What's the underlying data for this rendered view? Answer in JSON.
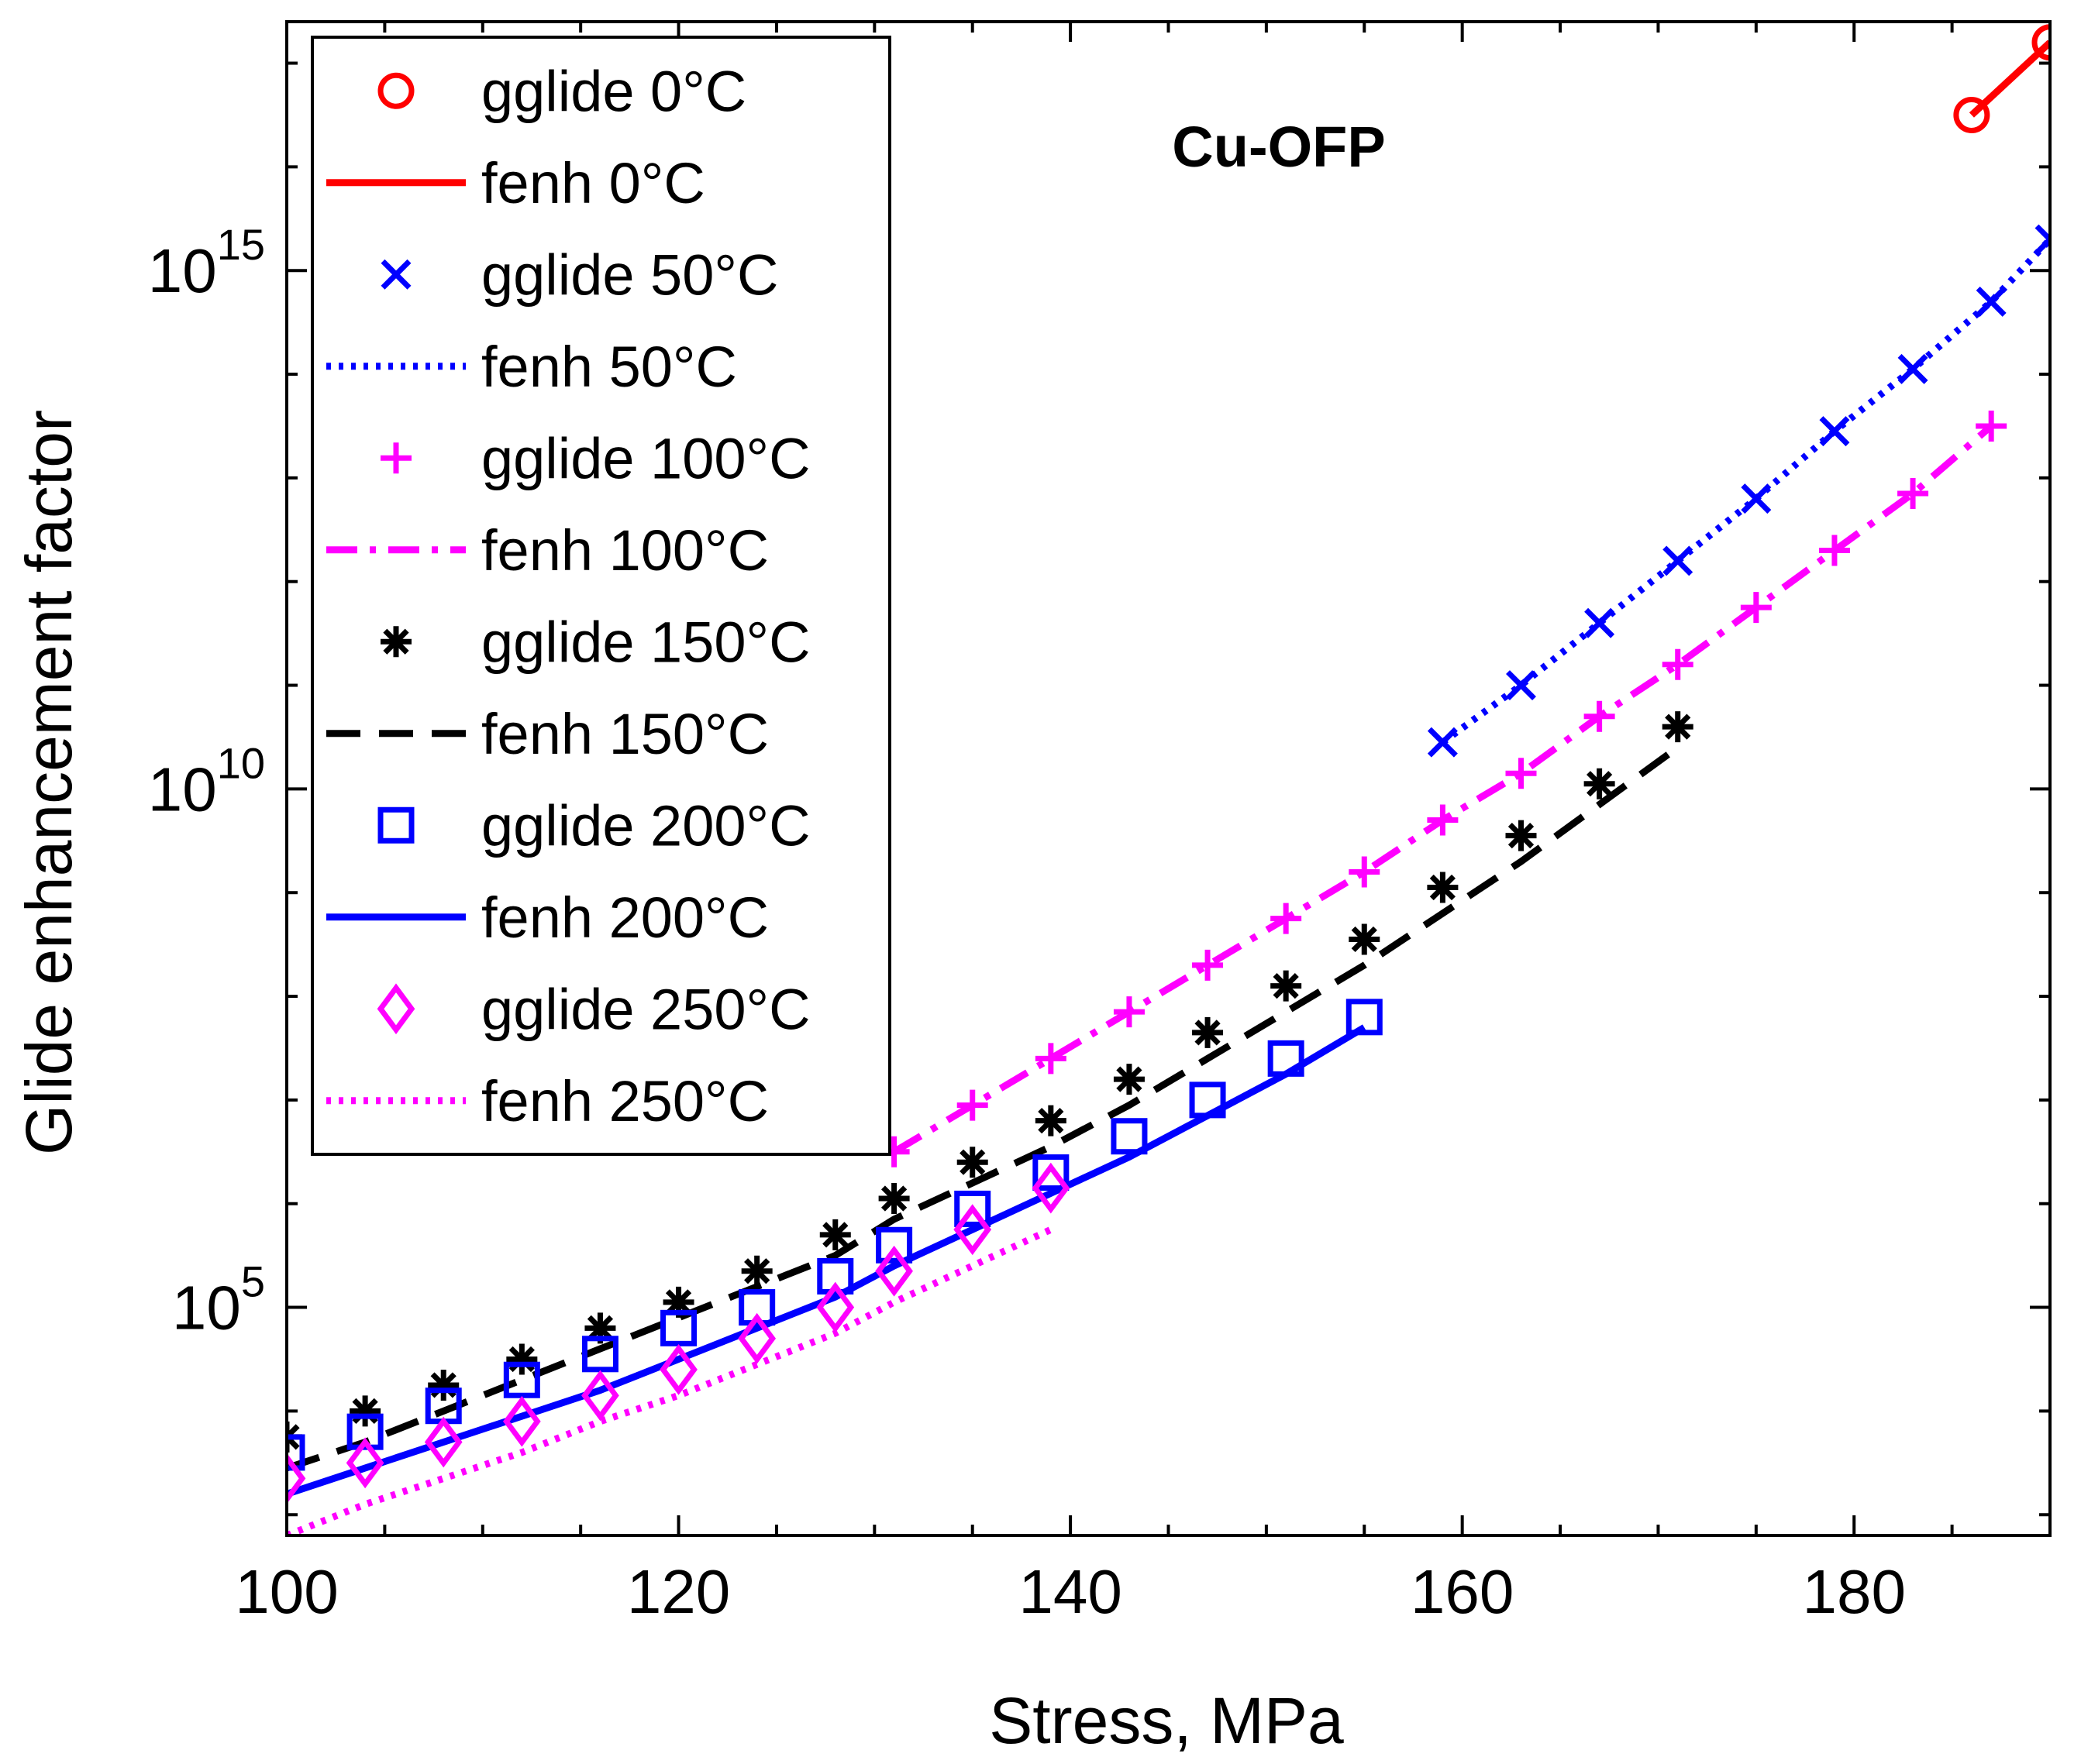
{
  "chart_data": {
    "type": "line",
    "title": "Cu-OFP",
    "xlabel": "Stress, MPa",
    "ylabel": "Glide enhancement factor",
    "xlim": [
      100,
      190
    ],
    "ylim_log10": [
      2.8,
      17.4
    ],
    "yscale": "log",
    "x_ticks": [
      "100",
      "120",
      "140",
      "160",
      "180"
    ],
    "y_ticks": [
      {
        "base": "10",
        "exp": "5"
      },
      {
        "base": "10",
        "exp": "10"
      },
      {
        "base": "10",
        "exp": "15"
      }
    ],
    "legend_position": "top-left",
    "series": [
      {
        "name": "gglide 0°C",
        "kind": "marker",
        "marker": "circle",
        "color": "#ff0000",
        "x": [
          186,
          190
        ],
        "log10_y": [
          16.5,
          17.2
        ]
      },
      {
        "name": "fenh 0°C",
        "kind": "line",
        "dash": "solid",
        "color": "#ff0000",
        "x": [
          186,
          190
        ],
        "log10_y": [
          16.5,
          17.2
        ]
      },
      {
        "name": "gglide 50°C",
        "kind": "marker",
        "marker": "x",
        "color": "#0000ff",
        "x": [
          159,
          163,
          167,
          171,
          175,
          179,
          183,
          187,
          190
        ],
        "log10_y": [
          10.45,
          11.0,
          11.6,
          12.2,
          12.8,
          13.45,
          14.05,
          14.7,
          15.3
        ]
      },
      {
        "name": "fenh 50°C",
        "kind": "line",
        "dash": "dotted",
        "color": "#0000ff",
        "x": [
          159,
          163,
          167,
          171,
          175,
          179,
          183,
          187,
          190
        ],
        "log10_y": [
          10.45,
          11.0,
          11.6,
          12.2,
          12.8,
          13.45,
          14.05,
          14.7,
          15.3
        ]
      },
      {
        "name": "gglide 100°C",
        "kind": "marker",
        "marker": "plus",
        "color": "#ff00ff",
        "x": [
          131,
          135,
          139,
          143,
          147,
          151,
          155,
          159,
          163,
          167,
          171,
          175,
          179,
          183,
          187
        ],
        "log10_y": [
          6.5,
          6.95,
          7.4,
          7.85,
          8.3,
          8.75,
          9.2,
          9.7,
          10.15,
          10.7,
          11.2,
          11.75,
          12.3,
          12.85,
          13.5
        ]
      },
      {
        "name": "fenh 100°C",
        "kind": "line",
        "dash": "dashdot",
        "color": "#ff00ff",
        "x": [
          131,
          135,
          139,
          143,
          147,
          151,
          155,
          159,
          163,
          167,
          171,
          175,
          179,
          183,
          187
        ],
        "log10_y": [
          6.5,
          6.95,
          7.4,
          7.85,
          8.3,
          8.75,
          9.2,
          9.7,
          10.15,
          10.7,
          11.2,
          11.75,
          12.3,
          12.85,
          13.5
        ]
      },
      {
        "name": "gglide 150°C",
        "kind": "marker",
        "marker": "asterisk",
        "color": "#000000",
        "x": [
          100,
          104,
          108,
          112,
          116,
          120,
          124,
          128,
          131,
          135,
          139,
          143,
          147,
          151,
          155,
          159,
          163,
          167,
          171
        ],
        "log10_y": [
          3.75,
          4.0,
          4.25,
          4.5,
          4.8,
          5.05,
          5.35,
          5.7,
          6.05,
          6.4,
          6.8,
          7.2,
          7.65,
          8.1,
          8.55,
          9.05,
          9.55,
          10.05,
          10.6
        ]
      },
      {
        "name": "fenh 150°C",
        "kind": "line",
        "dash": "dashed",
        "color": "#000000",
        "x": [
          100,
          104,
          108,
          112,
          116,
          120,
          124,
          128,
          131,
          135,
          139,
          143,
          147,
          151,
          155,
          159,
          163,
          167,
          171
        ],
        "log10_y": [
          3.45,
          3.7,
          4.0,
          4.3,
          4.6,
          4.9,
          5.2,
          5.5,
          5.85,
          6.2,
          6.55,
          6.95,
          7.4,
          7.85,
          8.3,
          8.8,
          9.3,
          9.85,
          10.4
        ]
      },
      {
        "name": "gglide 200°C",
        "kind": "marker",
        "marker": "square",
        "color": "#0000ff",
        "x": [
          100,
          104,
          108,
          112,
          116,
          120,
          124,
          128,
          131,
          135,
          139,
          143,
          147,
          151,
          155
        ],
        "log10_y": [
          3.6,
          3.8,
          4.05,
          4.3,
          4.55,
          4.8,
          5.0,
          5.3,
          5.6,
          5.95,
          6.3,
          6.65,
          7.0,
          7.4,
          7.8
        ]
      },
      {
        "name": "fenh 200°C",
        "kind": "line",
        "dash": "solid",
        "color": "#0000ff",
        "x": [
          100,
          104,
          108,
          112,
          116,
          120,
          124,
          128,
          131,
          135,
          139,
          143,
          147,
          151,
          155
        ],
        "log10_y": [
          3.2,
          3.45,
          3.7,
          3.95,
          4.2,
          4.5,
          4.8,
          5.1,
          5.4,
          5.75,
          6.1,
          6.45,
          6.85,
          7.25,
          7.7
        ]
      },
      {
        "name": "gglide 250°C",
        "kind": "marker",
        "marker": "diamond",
        "color": "#ff00ff",
        "x": [
          100,
          104,
          108,
          112,
          116,
          120,
          124,
          128,
          131,
          135,
          139
        ],
        "log10_y": [
          3.35,
          3.5,
          3.7,
          3.9,
          4.15,
          4.4,
          4.7,
          5.0,
          5.35,
          5.75,
          6.15
        ]
      },
      {
        "name": "fenh 250°C",
        "kind": "line",
        "dash": "dotted",
        "color": "#ff00ff",
        "x": [
          100,
          104,
          108,
          112,
          116,
          120,
          124,
          128,
          131,
          135,
          139
        ],
        "log10_y": [
          2.8,
          3.1,
          3.35,
          3.6,
          3.9,
          4.15,
          4.45,
          4.75,
          5.05,
          5.4,
          5.75
        ]
      }
    ]
  }
}
